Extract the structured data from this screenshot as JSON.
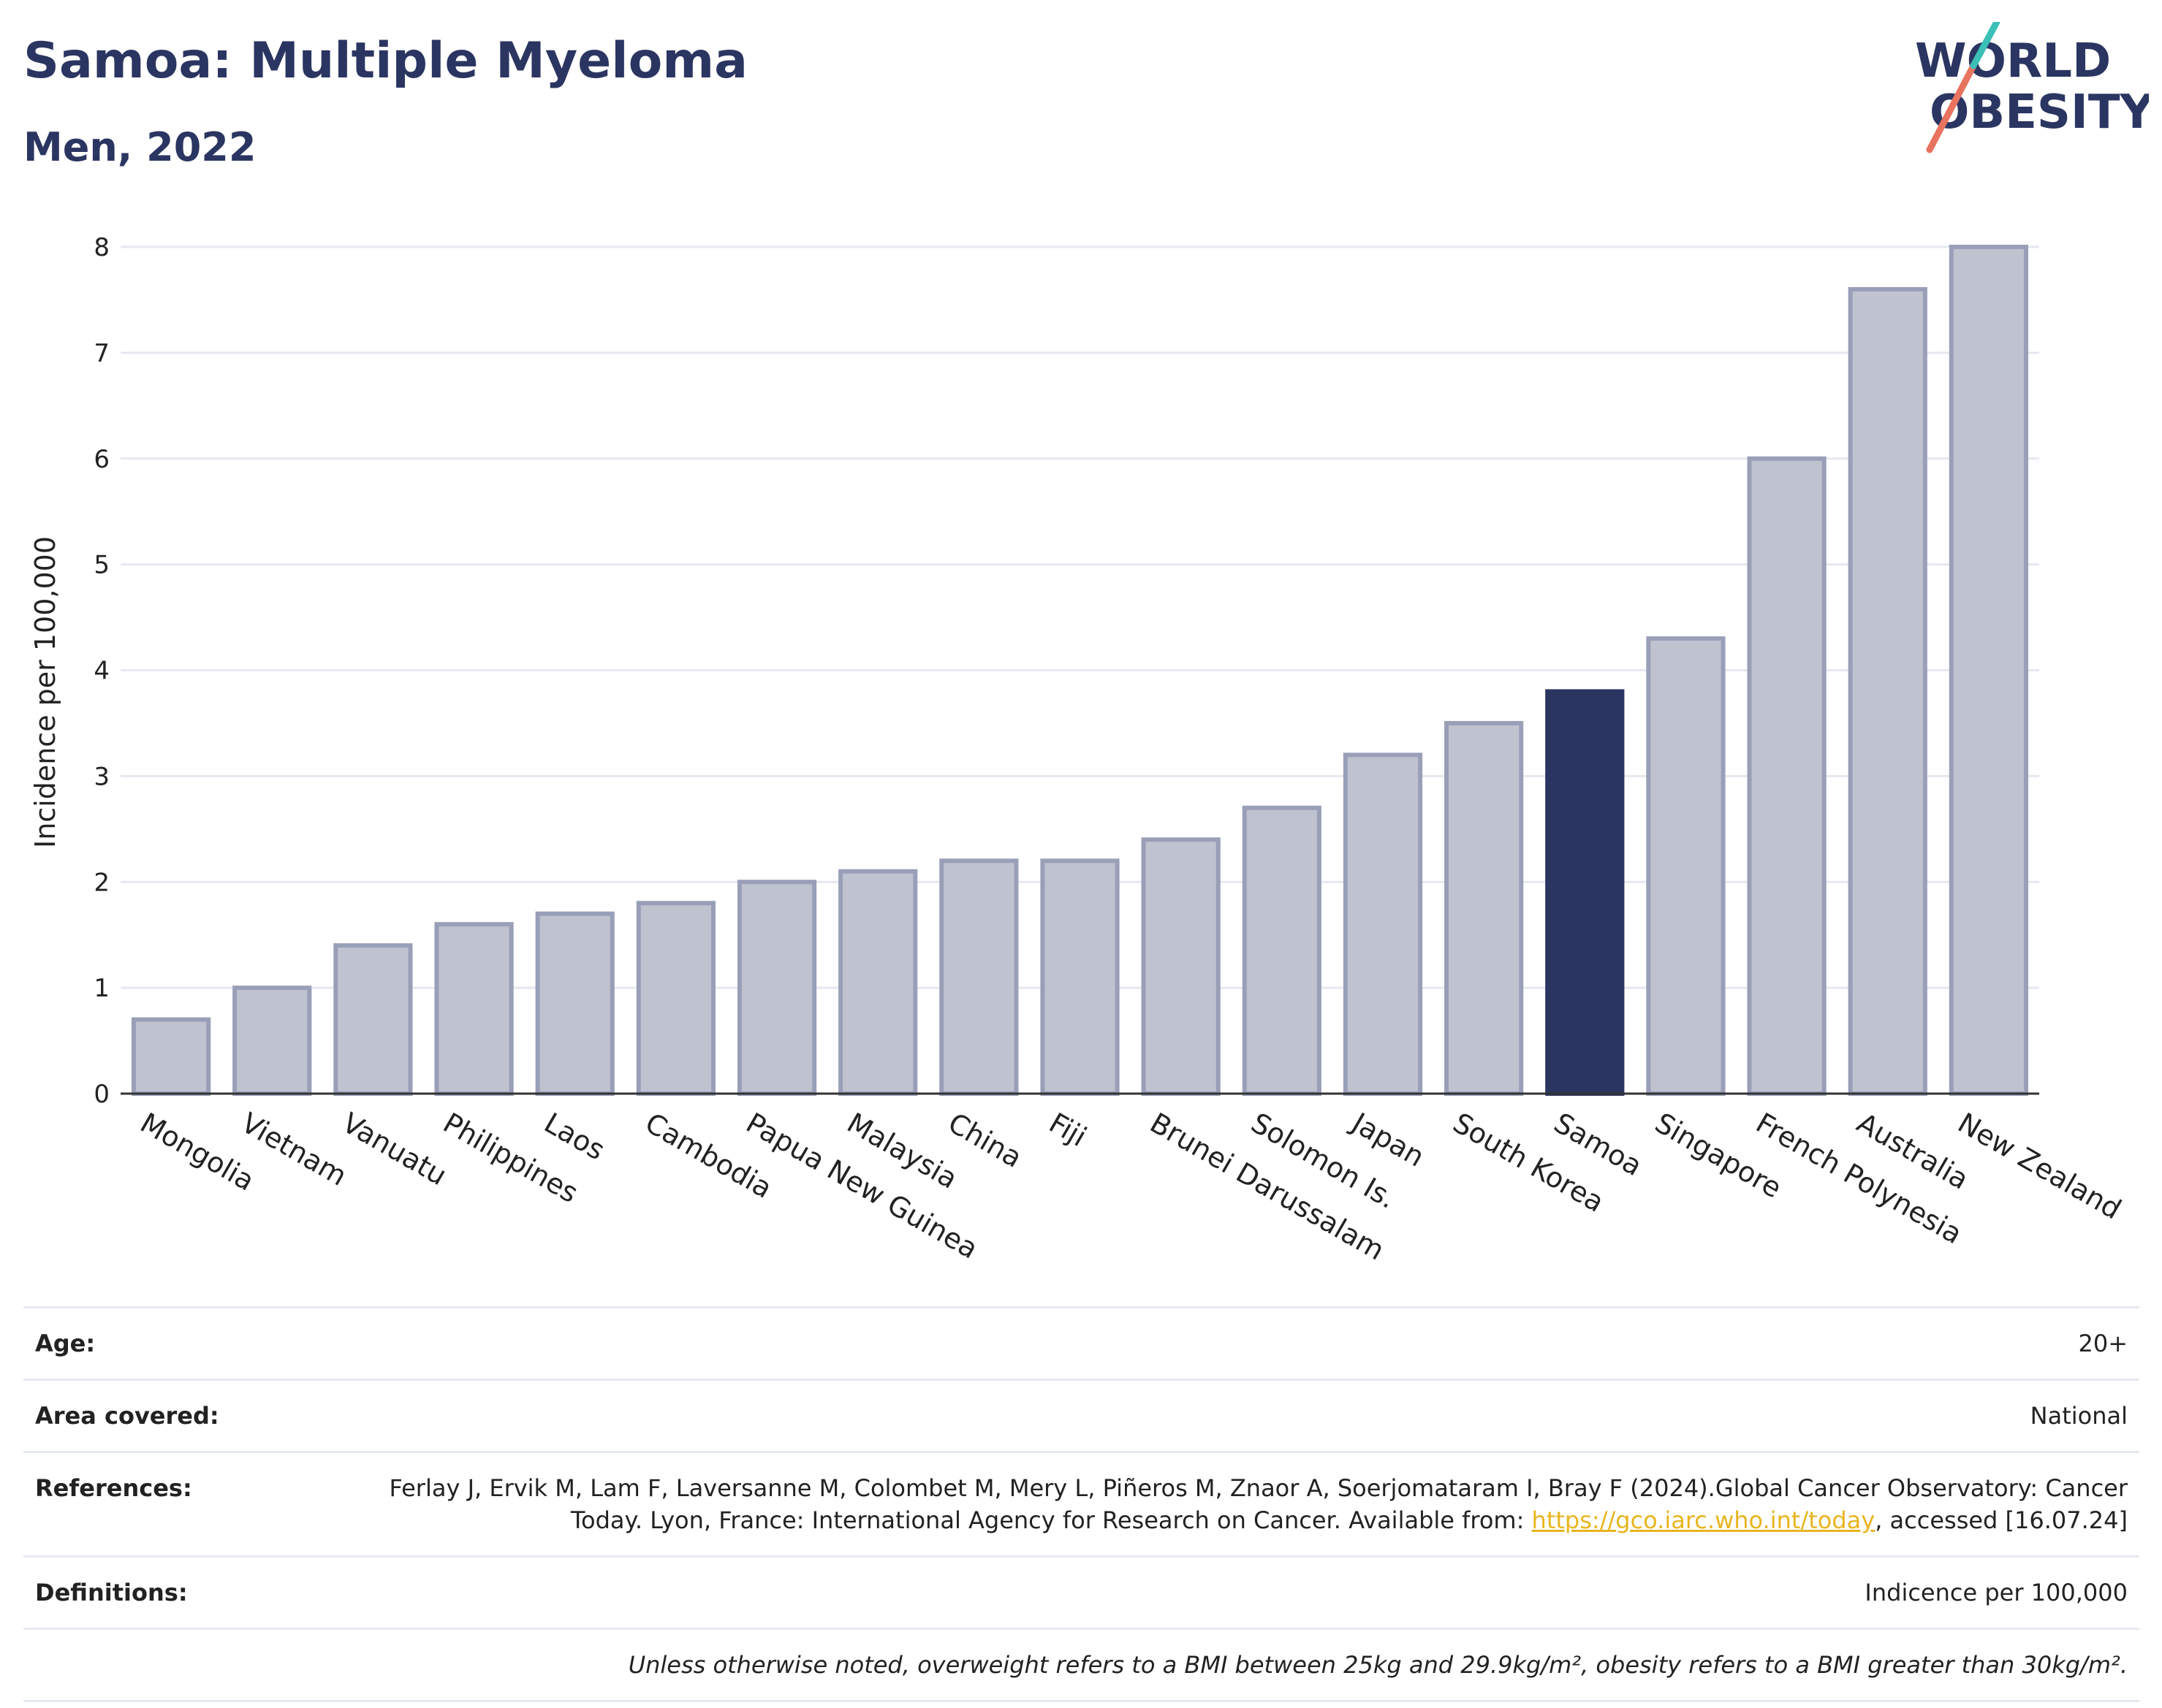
{
  "header": {
    "title": "Samoa: Multiple Myeloma",
    "subtitle": "Men, 2022"
  },
  "logo": {
    "line1": "WORLD",
    "line2": "OBESITY"
  },
  "colors": {
    "default_bar": "#bfc2cf",
    "default_bar_edge": "#9a9fb8",
    "highlight_bar": "#2b3561",
    "title": "#2b3561",
    "link": "#e8b51f"
  },
  "chart_data": {
    "type": "bar",
    "categories": [
      "Mongolia",
      "Vietnam",
      "Vanuatu",
      "Philippines",
      "Laos",
      "Cambodia",
      "Papua New Guinea",
      "Malaysia",
      "China",
      "Fiji",
      "Brunei Darussalam",
      "Solomon Is.",
      "Japan",
      "South Korea",
      "Samoa",
      "Singapore",
      "French Polynesia",
      "Australia",
      "New Zealand"
    ],
    "values": [
      0.7,
      1.0,
      1.4,
      1.6,
      1.7,
      1.8,
      2.0,
      2.1,
      2.2,
      2.2,
      2.4,
      2.7,
      3.2,
      3.5,
      3.8,
      4.3,
      6.0,
      7.6,
      8.0
    ],
    "highlight": "Samoa",
    "ylabel": "Incidence per 100,000",
    "xlabel": "",
    "ylim": [
      0,
      8
    ],
    "yticks": [
      "0",
      "1",
      "2",
      "3",
      "4",
      "5",
      "6",
      "7",
      "8"
    ],
    "grid": true
  },
  "info": {
    "age_label": "Age:",
    "age_value": "20+",
    "area_label": "Area covered:",
    "area_value": "National",
    "references_label": "References:",
    "references_text": "Ferlay J, Ervik M, Lam F, Laversanne M, Colombet M, Mery L, Piñeros M, Znaor A, Soerjomataram I, Bray F (2024).Global Cancer Observatory: Cancer Today. Lyon, France: International Agency for Research on Cancer. Available from: ",
    "references_link": "https://gco.iarc.who.int/today",
    "references_tail": ", accessed [16.07.24]",
    "definitions_label": "Definitions:",
    "definitions_value": "Indicence per 100,000",
    "note": "Unless otherwise noted, overweight refers to a BMI between 25kg and 29.9kg/m², obesity refers to a BMI greater than 30kg/m²."
  }
}
